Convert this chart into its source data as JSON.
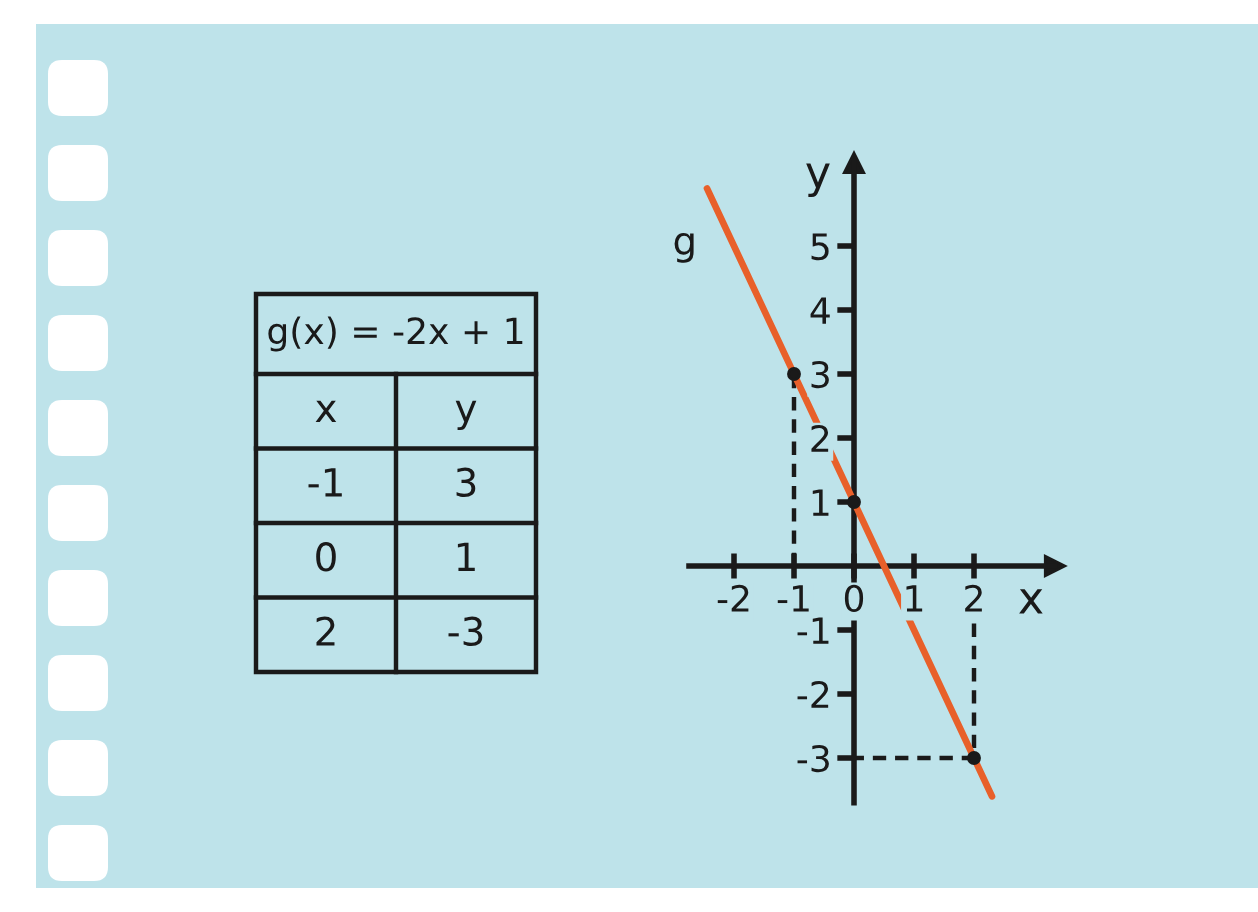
{
  "chart_data": [
    {
      "type": "other",
      "title": "g(x) = -2x + 1",
      "annotations": [
        "x",
        "y",
        "-1",
        "3",
        "0",
        "1",
        "2",
        "-3"
      ]
    },
    {
      "type": "line",
      "xlabel": "x",
      "ylabel": "y",
      "series": [
        {
          "name": "g",
          "color": "#e8602a",
          "x": [
            -2.45,
            2.3
          ],
          "values": [
            5.9,
            -3.6
          ]
        },
        {
          "type": "scatter",
          "color": "#1a1a1a",
          "marker": "circle",
          "x": [
            -1,
            0,
            2
          ],
          "values": [
            3,
            1,
            -3
          ]
        },
        {
          "color": "#1a1a1a",
          "line_style": "dashed",
          "x": [
            -1,
            -1
          ],
          "values": [
            0,
            3
          ]
        },
        {
          "color": "#1a1a1a",
          "line_style": "dashed",
          "x": [
            2,
            2,
            0
          ],
          "values": [
            -0.9,
            -3,
            -3
          ]
        }
      ],
      "xlim": [
        -2.75,
        3.35
      ],
      "ylim": [
        -3.7,
        6.3
      ],
      "xticks": [
        -2,
        -1,
        0,
        1,
        2
      ],
      "yticks": [
        -3,
        -2,
        -1,
        1,
        2,
        3,
        4,
        5
      ]
    }
  ]
}
